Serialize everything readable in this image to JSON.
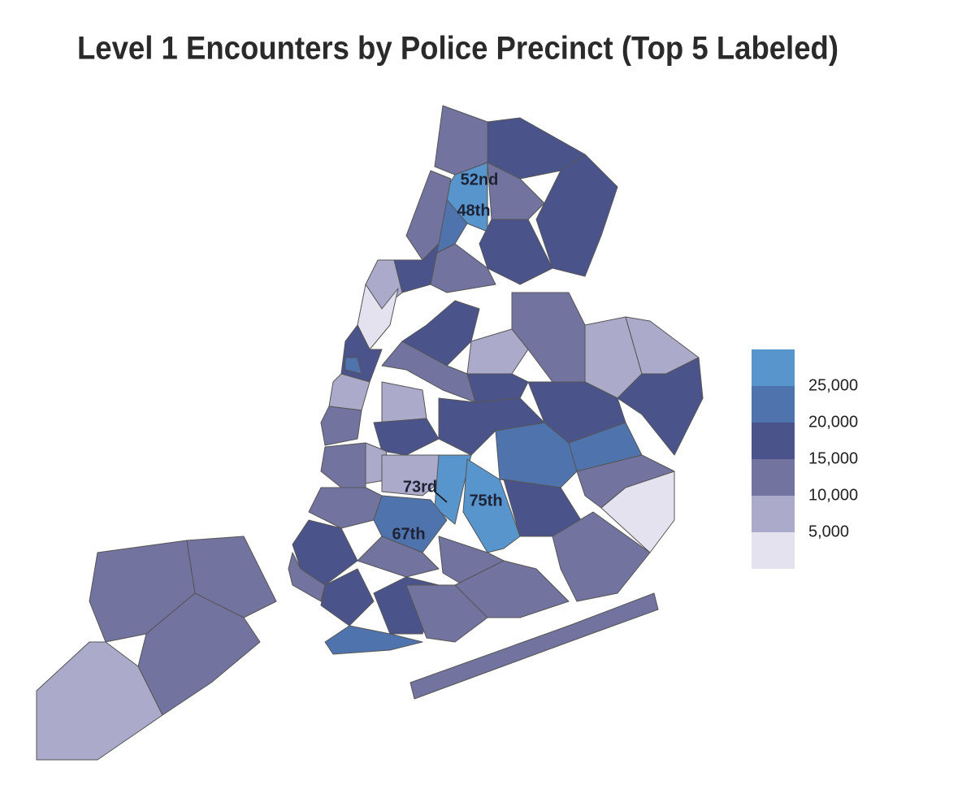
{
  "title": "Level 1 Encounters by Police Precinct (Top 5 Labeled)",
  "labels": [
    "52nd",
    "48th",
    "73rd",
    "75th",
    "67th"
  ],
  "legend": {
    "colors": [
      "#e3e2ee",
      "#abaaca",
      "#72739f",
      "#4a548a",
      "#4f73ad",
      "#5795cc"
    ],
    "lim": [
      0,
      30000
    ],
    "ticks": [
      {
        "value": 5000,
        "label": "5,000"
      },
      {
        "value": 10000,
        "label": "10,000"
      },
      {
        "value": 15000,
        "label": "15,000"
      },
      {
        "value": 20000,
        "label": "20,000"
      },
      {
        "value": 25000,
        "label": "25,000"
      }
    ]
  }
}
